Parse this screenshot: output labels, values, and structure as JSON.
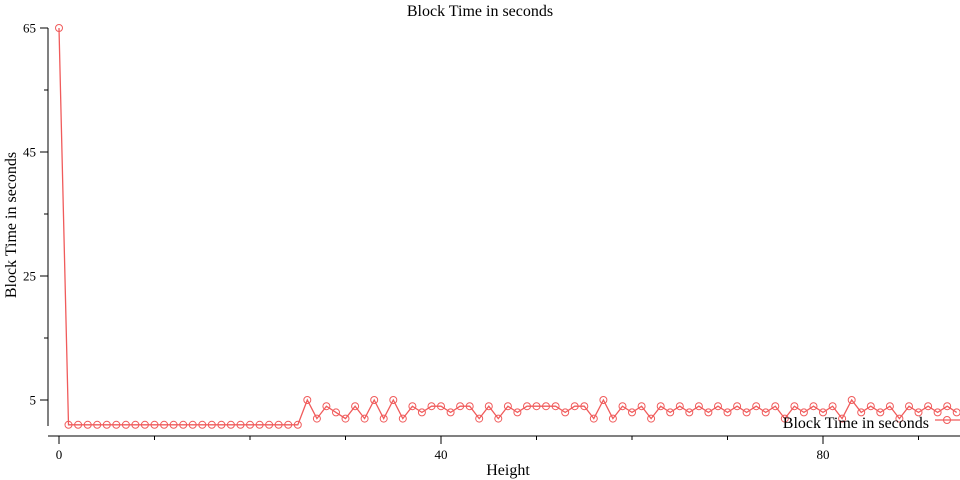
{
  "chart_data": {
    "type": "line",
    "title": "Block Time in seconds",
    "xlabel": "Height",
    "ylabel": "Block Time in seconds",
    "xlim": [
      -1,
      94
    ],
    "ylim": [
      1,
      67
    ],
    "x_ticks": [
      0,
      40,
      80
    ],
    "x_tick_labels": [
      "0",
      "40",
      "80"
    ],
    "x_minor_ticks": [
      10,
      20,
      30,
      50,
      60,
      70,
      90
    ],
    "y_ticks": [
      5,
      25,
      45,
      65
    ],
    "y_tick_labels": [
      "5",
      "25",
      "45",
      "65"
    ],
    "y_minor_ticks": [
      15,
      35,
      55
    ],
    "grid": false,
    "legend_position": "bottom-right",
    "series": [
      {
        "name": "Block Time in seconds",
        "color": "#f05b5b",
        "marker": "open-circle",
        "x": [
          0,
          1,
          2,
          3,
          4,
          5,
          6,
          7,
          8,
          9,
          10,
          11,
          12,
          13,
          14,
          15,
          16,
          17,
          18,
          19,
          20,
          21,
          22,
          23,
          24,
          25,
          26,
          27,
          28,
          29,
          30,
          31,
          32,
          33,
          34,
          35,
          36,
          37,
          38,
          39,
          40,
          41,
          42,
          43,
          44,
          45,
          46,
          47,
          48,
          49,
          50,
          51,
          52,
          53,
          54,
          55,
          56,
          57,
          58,
          59,
          60,
          61,
          62,
          63,
          64,
          65,
          66,
          67,
          68,
          69,
          70,
          71,
          72,
          73,
          74,
          75,
          76,
          77,
          78,
          79,
          80,
          81,
          82,
          83,
          84,
          85,
          86,
          87,
          88,
          89,
          90,
          91,
          92,
          93,
          94
        ],
        "values": [
          65,
          1,
          1,
          1,
          1,
          1,
          1,
          1,
          1,
          1,
          1,
          1,
          1,
          1,
          1,
          1,
          1,
          1,
          1,
          1,
          1,
          1,
          1,
          1,
          1,
          1,
          5,
          2,
          4,
          3,
          2,
          4,
          2,
          5,
          2,
          5,
          2,
          4,
          3,
          4,
          4,
          3,
          4,
          4,
          2,
          4,
          2,
          4,
          3,
          4,
          4,
          4,
          4,
          3,
          4,
          4,
          2,
          5,
          2,
          4,
          3,
          4,
          2,
          4,
          3,
          4,
          3,
          4,
          3,
          4,
          3,
          4,
          3,
          4,
          3,
          4,
          2,
          4,
          3,
          4,
          3,
          4,
          2,
          5,
          3,
          4,
          3,
          4,
          2,
          4,
          3,
          4,
          3,
          4,
          3
        ]
      }
    ]
  }
}
